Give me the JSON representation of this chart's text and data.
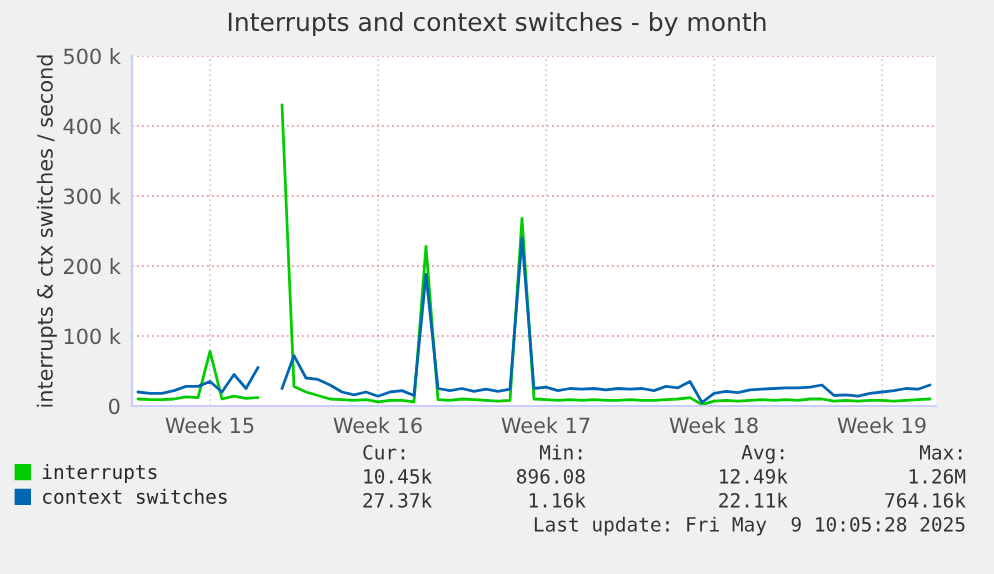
{
  "chart_data": {
    "type": "line",
    "title": "Interrupts and context switches - by month",
    "ylabel": "interrupts & ctx switches / second",
    "categories": [
      null,
      null,
      null,
      null,
      null,
      null,
      "Week 15",
      null,
      null,
      null,
      null,
      null,
      null,
      null,
      null,
      null,
      null,
      null,
      null,
      null,
      "Week 16",
      null,
      null,
      null,
      null,
      null,
      null,
      null,
      null,
      null,
      null,
      null,
      null,
      null,
      "Week 17",
      null,
      null,
      null,
      null,
      null,
      null,
      null,
      null,
      null,
      null,
      null,
      null,
      null,
      "Week 18",
      null,
      null,
      null,
      null,
      null,
      null,
      null,
      null,
      null,
      null,
      null,
      null,
      null,
      "Week 19",
      null,
      null,
      null,
      null
    ],
    "series": [
      {
        "name": "interrupts",
        "color": "#00cc00",
        "values": [
          10000,
          9000,
          9000,
          10000,
          13000,
          12000,
          78000,
          10000,
          14000,
          11000,
          12000,
          null,
          430000,
          28000,
          20000,
          15000,
          10000,
          9000,
          8000,
          9000,
          6000,
          8000,
          8000,
          6000,
          228000,
          9000,
          8000,
          10000,
          9000,
          8000,
          7000,
          8000,
          268000,
          10000,
          9000,
          8000,
          9000,
          8000,
          9000,
          8000,
          8000,
          9000,
          8000,
          8000,
          9000,
          10000,
          12000,
          2000,
          7000,
          8000,
          7000,
          8000,
          9000,
          8000,
          9000,
          8000,
          10000,
          10000,
          7000,
          8000,
          7000,
          8000,
          8000,
          7000,
          8000,
          9000,
          10000
        ]
      },
      {
        "name": "context switches",
        "color": "#0066b3",
        "values": [
          20000,
          18000,
          18000,
          22000,
          28000,
          28000,
          35000,
          20000,
          45000,
          25000,
          55000,
          null,
          25000,
          72000,
          40000,
          38000,
          30000,
          20000,
          16000,
          20000,
          14000,
          20000,
          22000,
          15000,
          188000,
          25000,
          22000,
          25000,
          21000,
          24000,
          21000,
          24000,
          240000,
          25000,
          27000,
          22000,
          25000,
          24000,
          25000,
          23000,
          25000,
          24000,
          25000,
          22000,
          28000,
          26000,
          35000,
          5000,
          18000,
          21000,
          19000,
          23000,
          24000,
          25000,
          26000,
          26000,
          27000,
          30000,
          15000,
          16000,
          14000,
          18000,
          20000,
          22000,
          25000,
          24000,
          30000
        ]
      }
    ],
    "ylim": [
      0,
      500000
    ],
    "yticks": [
      0,
      {
        "value": 100000,
        "label": "100 k"
      },
      {
        "value": 200000,
        "label": "200 k"
      },
      {
        "value": 300000,
        "label": "300 k"
      },
      {
        "value": 400000,
        "label": "400 k"
      },
      {
        "value": 500000,
        "label": "500 k"
      }
    ],
    "grid": true,
    "legend": "bottom",
    "marker": "none",
    "line_style": "solid",
    "annotations": [
      "Cur:",
      "Min:",
      "Avg:",
      "Max:",
      "10.45k",
      "896.08",
      "12.49k",
      "1.26M",
      "27.37k",
      "1.16k",
      "22.11k",
      "764.16k",
      "Last update: Fri May  9 10:05:28 2025"
    ]
  }
}
